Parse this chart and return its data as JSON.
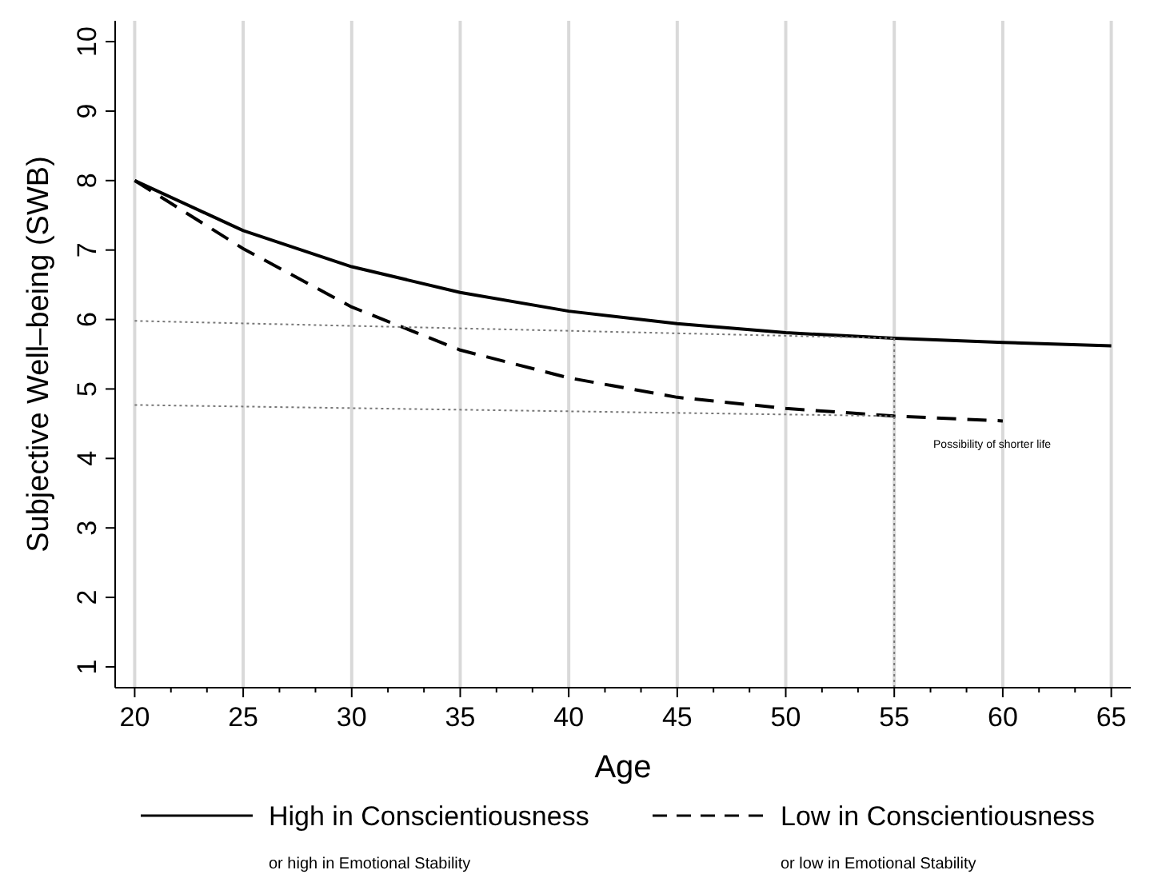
{
  "chart_data": {
    "type": "line",
    "xlabel": "Age",
    "ylabel": "Subjective Well–being (SWB)",
    "xlim": [
      19.1,
      65.9
    ],
    "ylim": [
      0.7,
      10.3
    ],
    "xticks": [
      20,
      {
        "value": 21.67,
        "label": null
      },
      {
        "value": 23.33,
        "label": null
      },
      25,
      {
        "value": 26.67,
        "label": null
      },
      {
        "value": 28.33,
        "label": null
      },
      30,
      {
        "value": 31.67,
        "label": null
      },
      {
        "value": 33.33,
        "label": null
      },
      35,
      {
        "value": 36.67,
        "label": null
      },
      {
        "value": 38.33,
        "label": null
      },
      40,
      {
        "value": 41.67,
        "label": null
      },
      {
        "value": 43.33,
        "label": null
      },
      45,
      {
        "value": 46.67,
        "label": null
      },
      {
        "value": 48.33,
        "label": null
      },
      50,
      {
        "value": 51.67,
        "label": null
      },
      {
        "value": 53.33,
        "label": null
      },
      55,
      {
        "value": 56.67,
        "label": null
      },
      {
        "value": 58.33,
        "label": null
      },
      60,
      {
        "value": 61.67,
        "label": null
      },
      {
        "value": 63.33,
        "label": null
      },
      65
    ],
    "yticks": [
      1,
      2,
      3,
      4,
      5,
      6,
      7,
      8,
      9,
      10
    ],
    "grid": "x",
    "legend": "bottom",
    "series": [
      {
        "name": "High in Conscientiousness",
        "color": "#000000",
        "line_style": "solid",
        "x": [
          20,
          25,
          30,
          35,
          40,
          45,
          50,
          55,
          60,
          65
        ],
        "values": [
          8,
          7.28,
          6.76,
          6.39,
          6.12,
          5.94,
          5.81,
          5.73,
          5.67,
          5.62
        ]
      },
      {
        "name": "Low in Conscientiousness",
        "color": "#000000",
        "line_style": "dashed",
        "x": [
          20,
          25,
          30,
          35,
          40,
          45,
          50,
          55,
          60
        ],
        "values": [
          8,
          7.02,
          6.18,
          5.56,
          5.16,
          4.88,
          4.72,
          4.61,
          4.54
        ]
      },
      {
        "color": "#777777",
        "line_style": "dotted",
        "x": [
          20,
          55
        ],
        "values": [
          5.98,
          5.73
        ]
      },
      {
        "color": "#777777",
        "line_style": "dotted",
        "x": [
          20,
          55
        ],
        "values": [
          4.77,
          4.61
        ]
      },
      {
        "color": "#777777",
        "line_style": "dotted",
        "x": [
          55,
          55
        ],
        "values": [
          0.7,
          5.73
        ]
      }
    ],
    "annotations": [
      "Possibility of shorter life",
      "or high in Emotional Stability",
      "or low in Emotional Stability"
    ]
  }
}
